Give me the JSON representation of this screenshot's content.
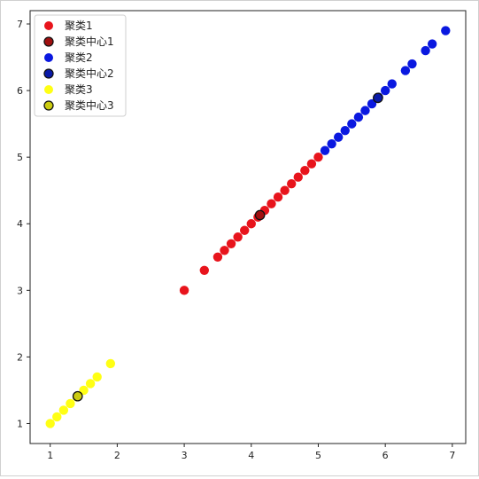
{
  "chart_data": {
    "type": "scatter",
    "title": "",
    "xlabel": "",
    "ylabel": "",
    "xlim": [
      0.7,
      7.2
    ],
    "ylim": [
      0.7,
      7.2
    ],
    "xticks": [
      1,
      2,
      3,
      4,
      5,
      6,
      7
    ],
    "yticks": [
      1,
      2,
      3,
      4,
      5,
      6,
      7
    ],
    "grid": false,
    "legend": "top-left",
    "series": [
      {
        "name": "聚类1",
        "color": "#e8141c",
        "role": "points",
        "x": [
          3.0,
          3.3,
          3.5,
          3.6,
          3.7,
          3.8,
          3.9,
          4.0,
          4.1,
          4.2,
          4.3,
          4.4,
          4.5,
          4.6,
          4.7,
          4.8,
          4.9,
          5.0
        ],
        "y": [
          3.0,
          3.3,
          3.5,
          3.6,
          3.7,
          3.8,
          3.9,
          4.0,
          4.1,
          4.2,
          4.3,
          4.4,
          4.5,
          4.6,
          4.7,
          4.8,
          4.9,
          5.0
        ]
      },
      {
        "name": "聚类中心1",
        "color": "#a01010",
        "role": "center",
        "x": [
          4.13
        ],
        "y": [
          4.13
        ]
      },
      {
        "name": "聚类2",
        "color": "#0a18e0",
        "role": "points",
        "x": [
          5.1,
          5.2,
          5.3,
          5.4,
          5.5,
          5.6,
          5.7,
          5.8,
          5.9,
          6.0,
          6.1,
          6.3,
          6.4,
          6.6,
          6.7,
          6.9
        ],
        "y": [
          5.1,
          5.2,
          5.3,
          5.4,
          5.5,
          5.6,
          5.7,
          5.8,
          5.9,
          6.0,
          6.1,
          6.3,
          6.4,
          6.6,
          6.7,
          6.9
        ]
      },
      {
        "name": "聚类中心2",
        "color": "#0a1aa8",
        "role": "center",
        "x": [
          5.89
        ],
        "y": [
          5.89
        ]
      },
      {
        "name": "聚类3",
        "color": "#ffff14",
        "role": "points",
        "x": [
          1.0,
          1.1,
          1.2,
          1.3,
          1.4,
          1.5,
          1.6,
          1.7,
          1.9
        ],
        "y": [
          1.0,
          1.1,
          1.2,
          1.3,
          1.4,
          1.5,
          1.6,
          1.7,
          1.9
        ]
      },
      {
        "name": "聚类中心3",
        "color": "#cccc10",
        "role": "center",
        "x": [
          1.41
        ],
        "y": [
          1.41
        ]
      }
    ]
  }
}
